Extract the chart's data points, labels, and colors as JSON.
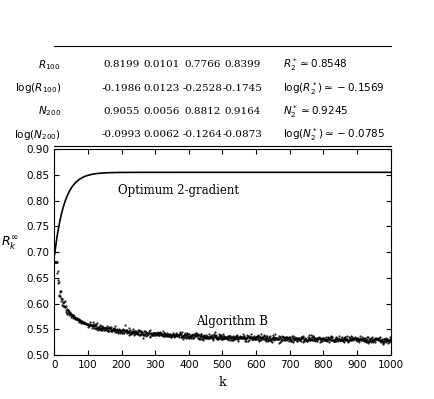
{
  "table": {
    "rows": [
      {
        "label": "$R_{100}$",
        "mean": "0.8199",
        "std": "0.0101",
        "min": "0.7766",
        "max": "0.8399",
        "theory": "$R_2^* \\simeq 0.8548$"
      },
      {
        "label": "$\\log(R_{100})$",
        "mean": "-0.1986",
        "std": "0.0123",
        "min": "-0.2528",
        "max": "-0.1745",
        "theory": "$\\log(R_2^*) \\simeq -0.1569$"
      },
      {
        "label": "$N_{200}$",
        "mean": "0.9055",
        "std": "0.0056",
        "min": "0.8812",
        "max": "0.9164",
        "theory": "$N_2^* \\simeq 0.9245$"
      },
      {
        "label": "$\\log(N_{200})$",
        "mean": "-0.0993",
        "std": "0.0062",
        "min": "-0.1264",
        "max": "-0.0873",
        "theory": "$\\log(N_2^*) \\simeq -0.0785$"
      }
    ]
  },
  "plot": {
    "xlim": [
      0,
      1000
    ],
    "ylim": [
      0.5,
      0.9
    ],
    "yticks": [
      0.5,
      0.55,
      0.6,
      0.65,
      0.7,
      0.75,
      0.8,
      0.85,
      0.9
    ],
    "xticks": [
      0,
      100,
      200,
      300,
      400,
      500,
      600,
      700,
      800,
      900,
      1000
    ],
    "xlabel": "k",
    "ylabel": "$R_k^{\\infty}$",
    "label1": "Optimum 2-gradient",
    "label2": "Algorithm B",
    "asymptote": 0.8548,
    "rho": 100,
    "n": 1000
  },
  "bg_color": "#ffffff",
  "line_color": "#000000"
}
